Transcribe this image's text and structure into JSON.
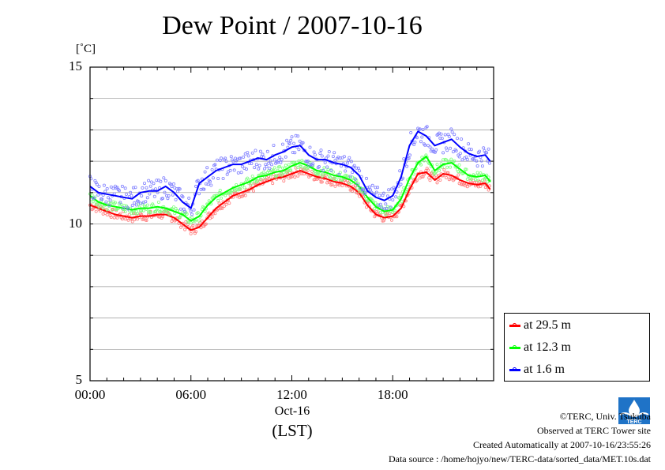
{
  "title": "Dew Point / 2007-10-16",
  "unit_label": "[˚C]",
  "date_label": "Oct-16",
  "time_zone_label": "(LST)",
  "credits": {
    "copyright": "©TERC, Univ. Tsukuba",
    "observed": "Observed at TERC Tower site",
    "created": "Created Automatically at 2007-10-16/23:55:26",
    "source": "Data source : /home/hojyo/new/TERC-data/sorted_data/MET.10s.dat",
    "logo_text": "TERC"
  },
  "chart_data": {
    "type": "line",
    "title": "Dew Point / 2007-10-16",
    "ylabel": "[˚C]",
    "xlabel": "(LST)",
    "ylim": [
      5,
      15
    ],
    "xlim_hours": [
      0,
      24
    ],
    "yticks": [
      "15",
      "10",
      "5"
    ],
    "ytick_values": [
      15,
      10,
      5
    ],
    "xticks": [
      "00:00",
      "06:00",
      "12:00",
      "18:00"
    ],
    "xtick_values": [
      0,
      6,
      12,
      18
    ],
    "grid": true,
    "legend_position": "bottom-right outside",
    "x": [
      0.0,
      0.5,
      1.0,
      1.5,
      2.0,
      2.5,
      3.0,
      3.5,
      4.0,
      4.5,
      5.0,
      5.5,
      6.0,
      6.5,
      7.0,
      7.5,
      8.0,
      8.5,
      9.0,
      9.5,
      10.0,
      10.5,
      11.0,
      11.5,
      12.0,
      12.5,
      13.0,
      13.5,
      14.0,
      14.5,
      15.0,
      15.5,
      16.0,
      16.5,
      17.0,
      17.5,
      18.0,
      18.5,
      19.0,
      19.5,
      20.0,
      20.5,
      21.0,
      21.5,
      22.0,
      22.5,
      23.0,
      23.5,
      23.8
    ],
    "series": [
      {
        "name": "at 29.5 m",
        "color": "#ff0000",
        "values": [
          10.6,
          10.5,
          10.4,
          10.3,
          10.25,
          10.2,
          10.25,
          10.25,
          10.3,
          10.3,
          10.2,
          10.0,
          9.8,
          9.9,
          10.2,
          10.5,
          10.7,
          10.9,
          11.0,
          11.1,
          11.25,
          11.35,
          11.45,
          11.5,
          11.6,
          11.7,
          11.6,
          11.5,
          11.45,
          11.35,
          11.3,
          11.2,
          11.0,
          10.6,
          10.3,
          10.2,
          10.25,
          10.5,
          11.1,
          11.6,
          11.65,
          11.4,
          11.6,
          11.55,
          11.4,
          11.3,
          11.25,
          11.3,
          11.1
        ]
      },
      {
        "name": "at 12.3 m",
        "color": "#00ff00",
        "values": [
          10.9,
          10.7,
          10.6,
          10.55,
          10.5,
          10.45,
          10.5,
          10.5,
          10.55,
          10.5,
          10.4,
          10.3,
          10.1,
          10.25,
          10.6,
          10.85,
          11.0,
          11.15,
          11.25,
          11.35,
          11.5,
          11.55,
          11.65,
          11.7,
          11.85,
          11.95,
          11.85,
          11.7,
          11.65,
          11.55,
          11.5,
          11.4,
          11.2,
          10.85,
          10.55,
          10.4,
          10.45,
          10.8,
          11.45,
          11.95,
          12.15,
          11.7,
          11.9,
          11.95,
          11.75,
          11.55,
          11.5,
          11.55,
          11.35
        ]
      },
      {
        "name": "at 1.6 m",
        "color": "#0000ff",
        "values": [
          11.2,
          11.0,
          10.95,
          10.9,
          10.85,
          10.8,
          11.0,
          11.05,
          11.05,
          11.2,
          11.0,
          10.7,
          10.5,
          11.3,
          11.5,
          11.7,
          11.8,
          11.9,
          11.9,
          12.0,
          12.1,
          12.05,
          12.2,
          12.3,
          12.45,
          12.5,
          12.2,
          12.05,
          12.05,
          11.95,
          11.9,
          11.8,
          11.55,
          11.05,
          10.85,
          10.75,
          10.9,
          11.5,
          12.5,
          12.95,
          12.8,
          12.5,
          12.6,
          12.7,
          12.45,
          12.25,
          12.15,
          12.2,
          12.0
        ]
      }
    ]
  }
}
